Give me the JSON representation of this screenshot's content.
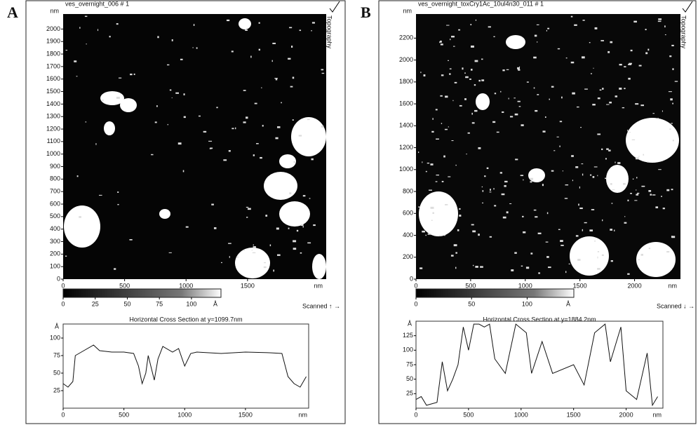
{
  "panels": [
    {
      "label": "A",
      "image": {
        "title": "ves_overnight_006 # 1",
        "side_label": "Topography",
        "y_unit": "nm",
        "x_unit": "nm",
        "xlim": [
          0,
          2140
        ],
        "ylim": [
          0,
          2120
        ],
        "xticks": [
          0,
          500,
          1000,
          1500
        ],
        "yticks": [
          0,
          100,
          200,
          300,
          400,
          500,
          600,
          700,
          800,
          900,
          1000,
          1100,
          1200,
          1300,
          1400,
          1500,
          1600,
          1700,
          1800,
          1900,
          2000
        ]
      },
      "colorbar": {
        "lim": [
          0,
          123
        ],
        "ticks": [
          0,
          25,
          50,
          75,
          100
        ],
        "unit": "Å"
      },
      "scan_label": "Scanned ↑ →"
    },
    {
      "label": "B",
      "image": {
        "title": "ves_overnight_toxCry1Ac_10ul4n30_011 # 1",
        "side_label": "Topography",
        "y_unit": "nm",
        "x_unit": "nm",
        "xlim": [
          0,
          2420
        ],
        "ylim": [
          0,
          2420
        ],
        "xticks": [
          0,
          500,
          1000,
          1500,
          2000
        ],
        "yticks": [
          0,
          200,
          400,
          600,
          800,
          1000,
          1200,
          1400,
          1600,
          1800,
          2000,
          2200
        ]
      },
      "colorbar": {
        "lim": [
          0,
          142
        ],
        "ticks": [
          0,
          50,
          100
        ],
        "unit": "Å"
      },
      "scan_label": "Scanned ↓ →"
    }
  ],
  "chart_data": [
    {
      "type": "line",
      "title": "Horizontal Cross Section at y=1099.7nm",
      "y_unit": "Å",
      "x_unit": "nm",
      "color": "#111",
      "x": [
        0,
        40,
        80,
        100,
        150,
        250,
        300,
        400,
        500,
        580,
        620,
        650,
        680,
        700,
        750,
        780,
        820,
        900,
        950,
        1000,
        1050,
        1100,
        1300,
        1500,
        1700,
        1800,
        1850,
        1900,
        1950,
        2000
      ],
      "values": [
        35,
        30,
        38,
        75,
        80,
        90,
        82,
        80,
        80,
        78,
        60,
        35,
        50,
        75,
        40,
        70,
        88,
        80,
        85,
        60,
        78,
        80,
        78,
        80,
        79,
        78,
        45,
        35,
        30,
        45
      ],
      "xlim": [
        0,
        2020
      ],
      "ylim": [
        0,
        120
      ],
      "xticks": [
        0,
        500,
        1000,
        1500
      ],
      "yticks": [
        25,
        50,
        75,
        100
      ]
    },
    {
      "type": "line",
      "title": "Horizontal Cross Section at y=1884.2nm",
      "y_unit": "Å",
      "x_unit": "nm",
      "color": "#111",
      "x": [
        0,
        50,
        100,
        200,
        250,
        300,
        350,
        400,
        450,
        500,
        550,
        600,
        650,
        700,
        750,
        850,
        950,
        1050,
        1100,
        1200,
        1300,
        1500,
        1600,
        1700,
        1800,
        1850,
        1950,
        2000,
        2100,
        2200,
        2250,
        2300
      ],
      "values": [
        15,
        20,
        5,
        10,
        80,
        30,
        50,
        75,
        140,
        100,
        145,
        145,
        140,
        145,
        85,
        60,
        145,
        130,
        60,
        115,
        60,
        75,
        40,
        130,
        145,
        80,
        140,
        30,
        15,
        95,
        5,
        20
      ],
      "xlim": [
        0,
        2350
      ],
      "ylim": [
        0,
        150
      ],
      "xticks": [
        0,
        500,
        1000,
        1500,
        2000
      ],
      "yticks": [
        25,
        50,
        75,
        100,
        125
      ]
    }
  ]
}
